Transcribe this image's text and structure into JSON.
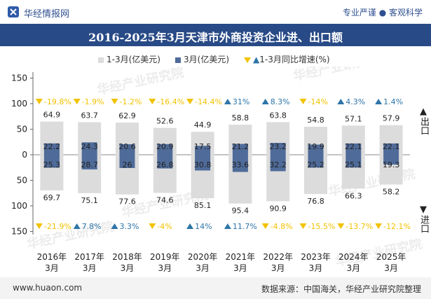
{
  "header": {
    "brand": "华经情报网",
    "tagline": "专业严谨 ● 客观科学",
    "title": "2016-2025年3月天津市外商投资企业进、出口额"
  },
  "legend": {
    "cumulative": "1-3月(亿美元)",
    "march": "3月(亿美元)",
    "growth": "1-3月同比增速(%)"
  },
  "side_labels": {
    "export_arrow": "▲",
    "export": "出口",
    "import_arrow": "▼",
    "import": "进口"
  },
  "footer": {
    "site": "www.huaon.com",
    "source": "数据来源：中国海关，华经产业研究院整理"
  },
  "watermark": "华经产业研究院",
  "colors": {
    "cumulative_bar": "#dcdcdc",
    "march_bar": "#4f6b99",
    "growth_up": "#2e75a8",
    "growth_down": "#f2c200",
    "title_bg": "#284a86"
  },
  "chart_data": {
    "type": "bar",
    "categories": [
      "2016年\n3月",
      "2017年\n3月",
      "2018年\n3月",
      "2019年\n3月",
      "2020年\n3月",
      "2021年\n3月",
      "2022年\n3月",
      "2023年\n3月",
      "2024年\n3月",
      "2025年\n3月"
    ],
    "ylim": [
      -150,
      150
    ],
    "yticks": [
      150,
      100,
      50,
      0,
      50,
      100,
      150
    ],
    "series": [
      {
        "name": "1-3月(亿美元)",
        "direction": "export",
        "values": [
          64.9,
          63.7,
          62.9,
          52.6,
          44.9,
          58.8,
          63.8,
          54.8,
          57.1,
          57.9
        ]
      },
      {
        "name": "1-3月(亿美元)",
        "direction": "import",
        "values": [
          69.7,
          75.1,
          77.6,
          74.6,
          85.1,
          95.4,
          90.9,
          76.8,
          66.3,
          58.2
        ]
      },
      {
        "name": "3月(亿美元)",
        "direction": "export",
        "values": [
          22.2,
          24.3,
          20.6,
          20.9,
          17.5,
          21.2,
          23.2,
          19.9,
          22.1,
          22.1
        ]
      },
      {
        "name": "3月(亿美元)",
        "direction": "import",
        "values": [
          25.3,
          28.7,
          26,
          26.8,
          30.8,
          33.6,
          32.2,
          25.2,
          25.1,
          19.3
        ]
      },
      {
        "name": "1-3月同比增速(%)",
        "direction": "export",
        "values": [
          -19.8,
          -1.9,
          -1.2,
          -16.4,
          -14.4,
          31,
          8.3,
          -14,
          4.3,
          1.4
        ]
      },
      {
        "name": "1-3月同比增速(%)",
        "direction": "import",
        "values": [
          -21.9,
          7.8,
          3.3,
          -4,
          14,
          11.7,
          -4.8,
          -15.5,
          -13.7,
          -12.1
        ]
      }
    ]
  }
}
